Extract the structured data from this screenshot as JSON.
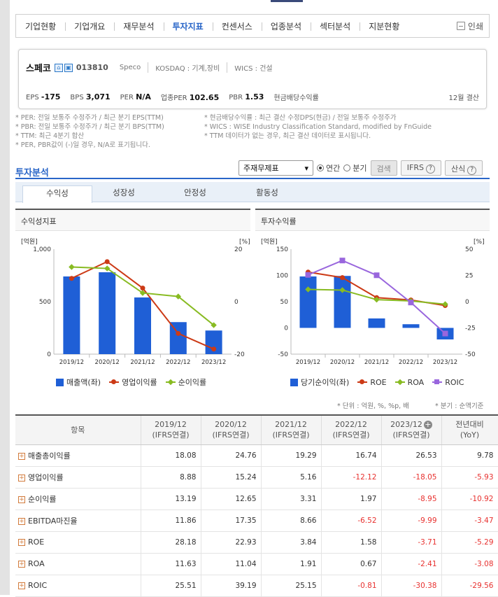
{
  "nav": {
    "tabs": [
      "기업현황",
      "기업개요",
      "재무분석",
      "투자지표",
      "컨센서스",
      "업종분석",
      "섹터분석",
      "지분현황"
    ],
    "active_tab": "투자지표",
    "print_label": "인쇄"
  },
  "company": {
    "name": "스페코",
    "code": "013810",
    "eng_name": "Speco",
    "market": "KOSDAQ : 기계,장비",
    "wics": "WICS : 건설",
    "metrics": [
      {
        "label": "EPS",
        "value": "-175"
      },
      {
        "label": "BPS",
        "value": "3,071"
      },
      {
        "label": "PER",
        "value": "N/A"
      },
      {
        "label": "업종PER",
        "value": "102.65"
      },
      {
        "label": "PBR",
        "value": "1.53"
      },
      {
        "label": "현금배당수익률",
        "value": ""
      }
    ],
    "settlement": "12월 결산"
  },
  "notes": {
    "left": [
      "* PER: 전일 보통주 수정주가 / 최근 분기 EPS(TTM)",
      "* PBR: 전일 보통주 수정주가 / 최근 분기 BPS(TTM)",
      "* TTM: 최근 4분기 합산",
      "* PER, PBR값이 (-)일 경우, N/A로 표기됩니다."
    ],
    "right": [
      "* 현금배당수익률 : 최근 결산 수정DPS(현금) / 전일 보통주 수정주가",
      "* WICS : WISE Industry Classification Standard, modified by FnGuide",
      "* TTM 데이터가 없는 경우, 최근 결산 데이터로 표시됩니다."
    ]
  },
  "invest": {
    "title": "투자분석",
    "select_value": "주재무제표",
    "radio_annual": "연간",
    "radio_quarter": "분기",
    "search_btn": "검색",
    "ifrs_btn": "IFRS",
    "formula_btn": "산식",
    "subtabs": [
      "수익성",
      "성장성",
      "안정성",
      "활동성"
    ],
    "active_subtab": "수익성"
  },
  "chart_data": [
    {
      "type": "bar",
      "title": "수익성지표",
      "categories": [
        "2019/12",
        "2020/12",
        "2021/12",
        "2022/12",
        "2023/12"
      ],
      "left_unit": "[억원]",
      "right_unit": "[%]",
      "left_ticks": [
        "1,000",
        "500",
        "0"
      ],
      "right_ticks": [
        "20",
        "0",
        "-20"
      ],
      "ylim_left": [
        0,
        1000
      ],
      "ylim_right": [
        -20,
        20
      ],
      "series": [
        {
          "name": "매출액(좌)",
          "type": "bar",
          "axis": "left",
          "color": "#1f5fd6",
          "values": [
            740,
            780,
            540,
            305,
            225
          ]
        },
        {
          "name": "영업이익률",
          "type": "line",
          "axis": "right",
          "color": "#cc3a16",
          "marker": "circle",
          "values": [
            8.88,
            15.24,
            5.16,
            -12.12,
            -18.05
          ]
        },
        {
          "name": "순이익률",
          "type": "line",
          "axis": "right",
          "color": "#88bb22",
          "marker": "diamond",
          "values": [
            13.19,
            12.65,
            3.31,
            1.97,
            -8.95
          ]
        }
      ]
    },
    {
      "type": "bar",
      "title": "투자수익률",
      "categories": [
        "2019/12",
        "2020/12",
        "2021/12",
        "2022/12",
        "2023/12"
      ],
      "left_unit": "[억원]",
      "right_unit": "[%]",
      "left_ticks": [
        "150",
        "100",
        "50",
        "0",
        "-50"
      ],
      "right_ticks": [
        "50",
        "25",
        "0",
        "-25",
        "-50"
      ],
      "ylim_left": [
        -50,
        150
      ],
      "ylim_right": [
        -50,
        50
      ],
      "series": [
        {
          "name": "당기순이익(좌)",
          "type": "bar",
          "axis": "left",
          "color": "#1f5fd6",
          "values": [
            98,
            99,
            18,
            7,
            -22
          ]
        },
        {
          "name": "ROE",
          "type": "line",
          "axis": "right",
          "color": "#cc3a16",
          "marker": "circle",
          "values": [
            28.18,
            22.93,
            3.84,
            1.58,
            -3.71
          ]
        },
        {
          "name": "ROA",
          "type": "line",
          "axis": "right",
          "color": "#88bb22",
          "marker": "diamond",
          "values": [
            11.63,
            11.04,
            1.91,
            0.67,
            -2.41
          ]
        },
        {
          "name": "ROIC",
          "type": "line",
          "axis": "right",
          "color": "#9966dd",
          "marker": "square",
          "values": [
            25.51,
            39.19,
            25.15,
            -0.81,
            -30.38
          ]
        }
      ]
    }
  ],
  "unit_note": "* 단위 : 억원, %, %p, 배",
  "quarter_note": "* 분기 : 순액기준",
  "table": {
    "header_item": "항목",
    "columns": [
      {
        "year": "2019/12",
        "basis": "(IFRS연결)"
      },
      {
        "year": "2020/12",
        "basis": "(IFRS연결)"
      },
      {
        "year": "2021/12",
        "basis": "(IFRS연결)"
      },
      {
        "year": "2022/12",
        "basis": "(IFRS연결)"
      },
      {
        "year": "2023/12",
        "basis": "(IFRS연결)"
      },
      {
        "year": "전년대비",
        "basis": "(YoY)"
      }
    ],
    "rows": [
      {
        "label": "매출총이익률",
        "values": [
          "18.08",
          "24.76",
          "19.29",
          "16.74",
          "26.53",
          "9.78"
        ]
      },
      {
        "label": "영업이익률",
        "values": [
          "8.88",
          "15.24",
          "5.16",
          "-12.12",
          "-18.05",
          "-5.93"
        ]
      },
      {
        "label": "순이익률",
        "values": [
          "13.19",
          "12.65",
          "3.31",
          "1.97",
          "-8.95",
          "-10.92"
        ]
      },
      {
        "label": "EBITDA마진율",
        "values": [
          "11.86",
          "17.35",
          "8.66",
          "-6.52",
          "-9.99",
          "-3.47"
        ]
      },
      {
        "label": "ROE",
        "values": [
          "28.18",
          "22.93",
          "3.84",
          "1.58",
          "-3.71",
          "-5.29"
        ]
      },
      {
        "label": "ROA",
        "values": [
          "11.63",
          "11.04",
          "1.91",
          "0.67",
          "-2.41",
          "-3.08"
        ]
      },
      {
        "label": "ROIC",
        "values": [
          "25.51",
          "39.19",
          "25.15",
          "-0.81",
          "-30.38",
          "-29.56"
        ]
      }
    ]
  }
}
